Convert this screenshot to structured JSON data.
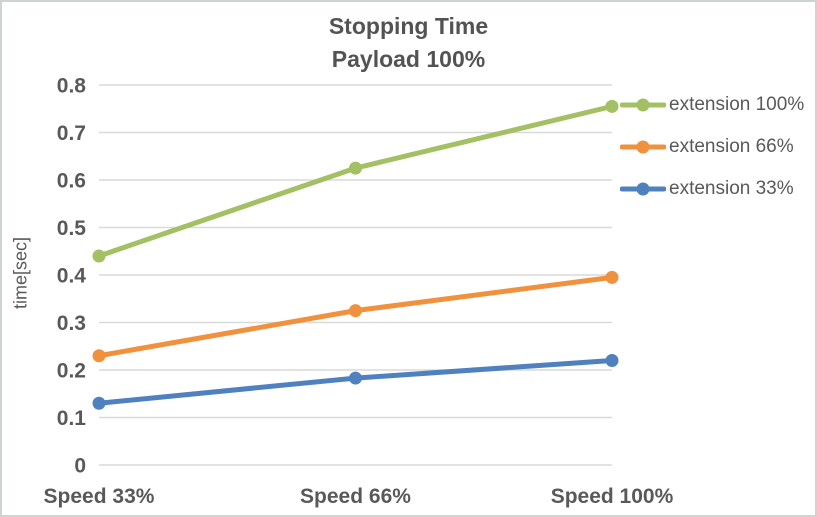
{
  "chart": {
    "title_line1": "Stopping Time",
    "title_line2": "Payload 100%",
    "ylabel": "time[sec]"
  },
  "chart_data": {
    "type": "line",
    "title": "Stopping Time",
    "subtitle": "Payload 100%",
    "categories": [
      "Speed 33%",
      "Speed 66%",
      "Speed 100%"
    ],
    "series": [
      {
        "name": "extension 100%",
        "color": "#a3c064",
        "values": [
          0.44,
          0.625,
          0.755
        ]
      },
      {
        "name": "extension 66%",
        "color": "#f0913e",
        "values": [
          0.23,
          0.325,
          0.395
        ]
      },
      {
        "name": "extension 33%",
        "color": "#4e81bd",
        "values": [
          0.13,
          0.183,
          0.22
        ]
      }
    ],
    "xlabel": "",
    "ylabel": "time[sec]",
    "ylim": [
      0,
      0.8
    ],
    "ytick_step": 0.1,
    "grid": true,
    "legend_position": "right",
    "colors": {
      "grid": "#d9d9d9",
      "text": "#595959",
      "title": "#535353",
      "border": "#d0d3d4",
      "background": "#ffffff"
    }
  }
}
